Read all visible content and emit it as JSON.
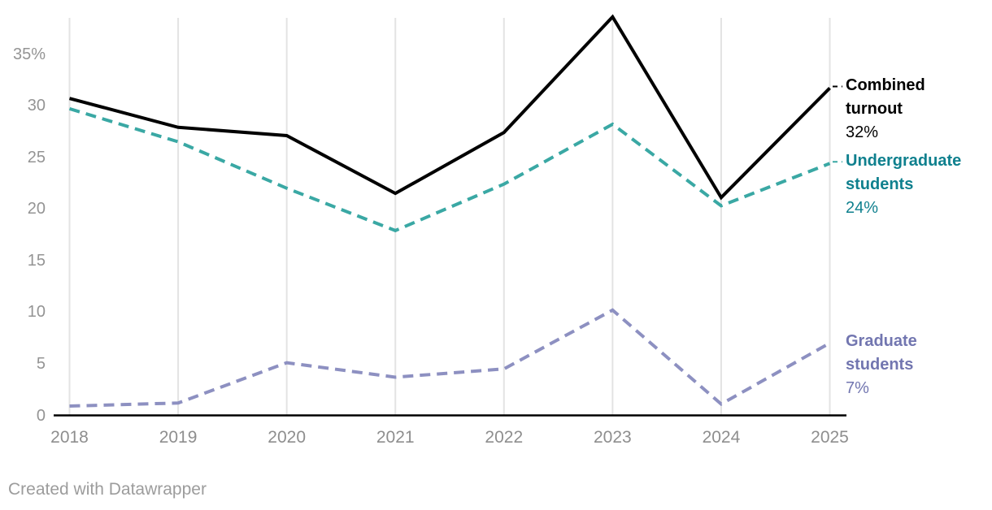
{
  "chart_data": {
    "type": "line",
    "title": "",
    "x": [
      "2018",
      "2019",
      "2020",
      "2021",
      "2022",
      "2023",
      "2024",
      "2025"
    ],
    "series": [
      {
        "name": "Combined turnout",
        "values": [
          30.7,
          27.9,
          27.1,
          21.5,
          27.4,
          38.6,
          21.1,
          31.7
        ],
        "end_label": "32%",
        "color": "#000000",
        "label_color": "#000000",
        "style": "solid",
        "leader_tick": true
      },
      {
        "name": "Undergraduate students",
        "values": [
          29.7,
          26.5,
          22.0,
          17.9,
          22.4,
          28.2,
          20.3,
          24.4
        ],
        "end_label": "24%",
        "color": "#3aa8a4",
        "label_color": "#0f808e",
        "style": "dashed",
        "leader_tick": true
      },
      {
        "name": "Graduate students",
        "values": [
          0.9,
          1.2,
          5.1,
          3.7,
          4.5,
          10.2,
          1.1,
          7.0
        ],
        "end_label": "7%",
        "color": "#8d90c1",
        "label_color": "#7276b0",
        "style": "dashed",
        "leader_tick": false
      }
    ],
    "y_ticks": [
      {
        "value": 35,
        "label": "35%"
      },
      {
        "value": 30,
        "label": "30"
      },
      {
        "value": 25,
        "label": "25"
      },
      {
        "value": 20,
        "label": "20"
      },
      {
        "value": 15,
        "label": "15"
      },
      {
        "value": 10,
        "label": "10"
      },
      {
        "value": 5,
        "label": "5"
      },
      {
        "value": 0,
        "label": "0"
      }
    ],
    "ylim": [
      0,
      38.6
    ],
    "grid": "vertical",
    "legend_position": "right-of-line-ends"
  },
  "colors": {
    "grid": "#e3e3e3",
    "axis": "#000000",
    "background": "#ffffff"
  },
  "footer": {
    "credit": "Created with Datawrapper"
  }
}
